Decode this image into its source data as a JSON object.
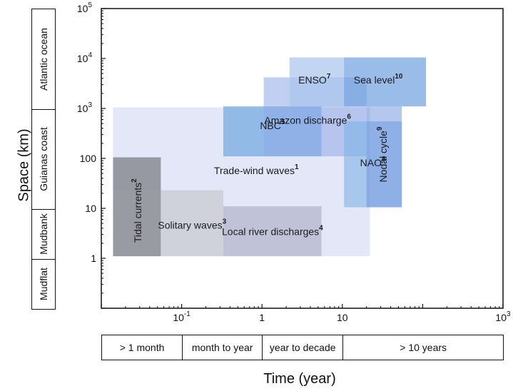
{
  "chart_data": {
    "type": "area",
    "xlabel": "Time (year)",
    "ylabel": "Space (km)",
    "xscale": "log",
    "yscale": "log",
    "xlim": [
      0.01,
      1000
    ],
    "ylim": [
      0.1,
      100000
    ],
    "x_ticks": [
      {
        "value": 0.1,
        "base": "10",
        "exp": "-1"
      },
      {
        "value": 1,
        "base": "1",
        "exp": ""
      },
      {
        "value": 10,
        "base": "10",
        "exp": ""
      },
      {
        "value": 1000,
        "base": "10",
        "exp": "3"
      }
    ],
    "y_ticks": [
      {
        "value": 1,
        "base": "1",
        "exp": ""
      },
      {
        "value": 10,
        "base": "10",
        "exp": ""
      },
      {
        "value": 100,
        "base": "100",
        "exp": ""
      },
      {
        "value": 1000,
        "base": "10",
        "exp": "3"
      },
      {
        "value": 10000,
        "base": "10",
        "exp": "4"
      },
      {
        "value": 100000,
        "base": "10",
        "exp": "5"
      }
    ],
    "regions": [
      {
        "label": "Trade-wind waves",
        "ref": "1",
        "x_range": [
          0.014,
          22
        ],
        "y_range": [
          1.1,
          1050
        ],
        "color": "#c9d0ef",
        "opacity": 0.5,
        "label_x": 0.85,
        "label_y": 55
      },
      {
        "label": "Tidal currents",
        "ref": "2",
        "x_range": [
          0.014,
          0.055
        ],
        "y_range": [
          1.1,
          105
        ],
        "color": "#7d7f86",
        "opacity": 0.75,
        "label_x": 0.029,
        "label_y": 9,
        "rotate": true
      },
      {
        "label": "Tidal currents",
        "ref": "",
        "x_range": [
          0.014,
          0.055
        ],
        "y_range": [
          1.1,
          23
        ],
        "color": "#9a9ca2",
        "opacity": 0.55
      },
      {
        "label": "Solitary waves",
        "ref": "3",
        "x_range": [
          0.055,
          0.33
        ],
        "y_range": [
          1.1,
          23
        ],
        "color": "#c7c9cf",
        "opacity": 0.7,
        "label_x": 0.135,
        "label_y": 4.5
      },
      {
        "label": "Local river discharges",
        "ref": "4",
        "x_range": [
          0.33,
          5.5
        ],
        "y_range": [
          1.1,
          11
        ],
        "color": "#b7bad0",
        "opacity": 0.8,
        "label_x": 1.35,
        "label_y": 3.3
      },
      {
        "label": "NBC",
        "ref": "5",
        "x_range": [
          0.33,
          5.5
        ],
        "y_range": [
          110,
          1100
        ],
        "color": "#6ea6e0",
        "opacity": 0.7,
        "label_x": 1.35,
        "label_y": 440
      },
      {
        "label": "Amazon discharge",
        "ref": "6",
        "x_range": [
          1.05,
          20
        ],
        "y_range": [
          110,
          4200
        ],
        "color": "#8ea9e8",
        "opacity": 0.55,
        "label_x": 3.7,
        "label_y": 560
      },
      {
        "label": "ENSO",
        "ref": "7",
        "x_range": [
          2.2,
          10.5
        ],
        "y_range": [
          1100,
          10500
        ],
        "color": "#a8c4ec",
        "opacity": 0.7,
        "label_x": 4.5,
        "label_y": 3600
      },
      {
        "label": "NAO",
        "ref": "8",
        "x_range": [
          10.5,
          55
        ],
        "y_range": [
          10.5,
          550
        ],
        "color": "#7eb2e6",
        "opacity": 0.6,
        "label_x": 24,
        "label_y": 80
      },
      {
        "label": "Nodal cycle",
        "ref": "9",
        "x_range": [
          20,
          55
        ],
        "y_range": [
          10.5,
          1100
        ],
        "color": "#6a90dc",
        "opacity": 0.5,
        "label_x": 33,
        "label_y": 120,
        "rotate": true
      },
      {
        "label": "Sea level",
        "ref": "10",
        "x_range": [
          10.5,
          110
        ],
        "y_range": [
          1100,
          10500
        ],
        "color": "#6d9fe0",
        "opacity": 0.7,
        "label_x": 28,
        "label_y": 3600
      }
    ],
    "y_bands": [
      {
        "label": "Mudflat",
        "y_range": [
          0.1,
          1
        ]
      },
      {
        "label": "Mudbank",
        "y_range": [
          1,
          10
        ]
      },
      {
        "label": "Guianas coast",
        "y_range": [
          10,
          1000
        ]
      },
      {
        "label": "Atlantic ocean",
        "y_range": [
          1000,
          100000
        ]
      }
    ],
    "x_bands": [
      {
        "label": "> 1 month",
        "x_range": [
          0.01,
          0.1
        ]
      },
      {
        "label": "month to year",
        "x_range": [
          0.1,
          1
        ]
      },
      {
        "label": "year to decade",
        "x_range": [
          1,
          10
        ]
      },
      {
        "label": "> 10 years",
        "x_range": [
          10,
          1000
        ]
      }
    ]
  }
}
